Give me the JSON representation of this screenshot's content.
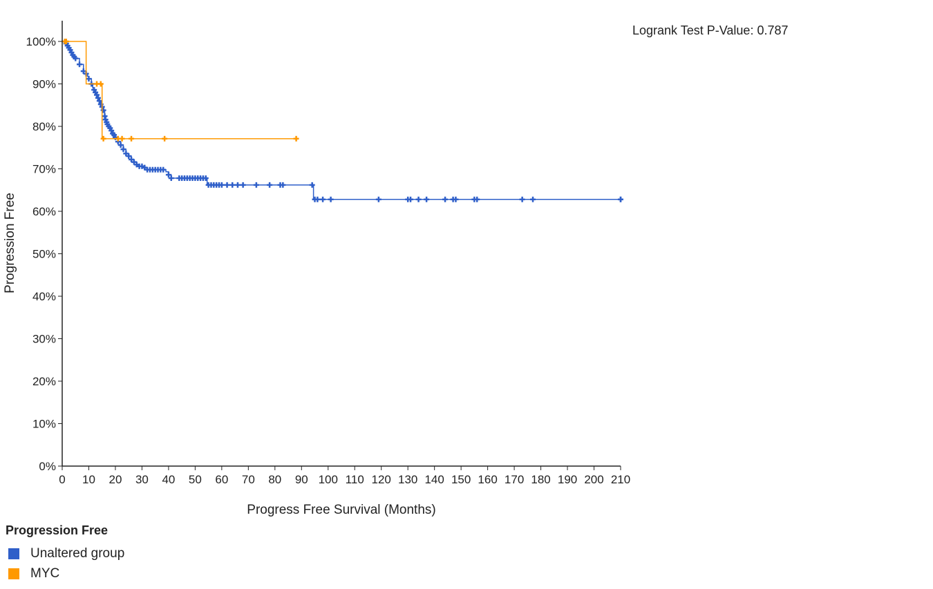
{
  "pvalue_text": "Logrank Test P-Value: 0.787",
  "legend": {
    "title": "Progression Free",
    "items": [
      {
        "label": "Unaltered group",
        "color": "#2f5fc9"
      },
      {
        "label": "MYC",
        "color": "#ff9900"
      }
    ]
  },
  "chart_data": {
    "type": "line",
    "subtype": "kaplan-meier-step",
    "xlabel": "Progress Free Survival (Months)",
    "ylabel": "Progression Free",
    "xlim": [
      0,
      210
    ],
    "ylim": [
      0,
      100
    ],
    "xticks": [
      0,
      10,
      20,
      30,
      40,
      50,
      60,
      70,
      80,
      90,
      100,
      110,
      120,
      130,
      140,
      150,
      160,
      170,
      180,
      190,
      200,
      210
    ],
    "yticks": [
      0,
      10,
      20,
      30,
      40,
      50,
      60,
      70,
      80,
      90,
      100
    ],
    "ytick_labels": [
      "0%",
      "10%",
      "20%",
      "30%",
      "40%",
      "50%",
      "60%",
      "70%",
      "80%",
      "90%",
      "100%"
    ],
    "grid": false,
    "series": [
      {
        "name": "Unaltered group",
        "color": "#2f5fc9",
        "steps": [
          [
            0,
            100
          ],
          [
            1.5,
            99.5
          ],
          [
            2,
            99
          ],
          [
            2.5,
            98.5
          ],
          [
            3,
            98
          ],
          [
            3.5,
            97.4
          ],
          [
            4,
            96.8
          ],
          [
            4.5,
            96.4
          ],
          [
            5,
            96
          ],
          [
            6.5,
            94.6
          ],
          [
            8,
            93
          ],
          [
            9,
            92.4
          ],
          [
            9.5,
            91.8
          ],
          [
            10,
            91.2
          ],
          [
            11,
            90
          ],
          [
            11.5,
            89
          ],
          [
            12,
            88.6
          ],
          [
            12.5,
            88
          ],
          [
            13,
            87.4
          ],
          [
            13.5,
            86.7
          ],
          [
            14,
            86
          ],
          [
            14.5,
            85.2
          ],
          [
            15,
            84.6
          ],
          [
            15.5,
            83.8
          ],
          [
            16,
            82.4
          ],
          [
            16.3,
            81.6
          ],
          [
            16.7,
            81
          ],
          [
            17,
            80.5
          ],
          [
            17.5,
            80
          ],
          [
            18,
            79.6
          ],
          [
            18.5,
            79
          ],
          [
            19,
            78.3
          ],
          [
            19.5,
            78
          ],
          [
            20,
            77.4
          ],
          [
            21,
            76.4
          ],
          [
            22,
            75.6
          ],
          [
            23,
            74.6
          ],
          [
            24,
            73.6
          ],
          [
            25,
            73
          ],
          [
            26,
            72.2
          ],
          [
            27,
            71.6
          ],
          [
            28,
            71
          ],
          [
            29,
            70.6
          ],
          [
            30.5,
            70.3
          ],
          [
            32,
            69.8
          ],
          [
            39,
            69.3
          ],
          [
            40,
            68.6
          ],
          [
            41,
            67.8
          ],
          [
            54.5,
            66.2
          ],
          [
            94.5,
            62.8
          ]
        ],
        "censors": [
          1,
          1.5,
          2,
          2.5,
          3,
          3.5,
          4,
          4.5,
          5,
          6.5,
          8,
          9,
          10,
          11,
          12,
          12.5,
          13,
          13.5,
          14,
          14.5,
          15,
          15.5,
          16,
          16.3,
          16.7,
          17,
          17.5,
          18,
          18.5,
          19,
          19.5,
          20,
          21,
          22,
          23,
          24,
          25,
          26,
          27,
          28,
          29,
          30,
          31,
          32,
          33,
          34,
          35,
          36,
          37,
          38,
          40,
          41,
          44,
          45,
          46,
          47,
          48,
          49,
          50,
          51,
          52,
          53,
          54,
          55,
          56,
          57,
          58,
          59,
          60,
          62,
          64,
          66,
          68,
          73,
          78,
          82,
          83,
          94,
          95,
          96,
          98,
          101,
          119,
          130,
          131,
          134,
          137,
          144,
          147,
          148,
          155,
          156,
          173,
          177,
          210,
          211
        ]
      },
      {
        "name": "MYC",
        "color": "#ff9900",
        "steps": [
          [
            0,
            100
          ],
          [
            9,
            90
          ],
          [
            15,
            77.1
          ],
          [
            88,
            77.1
          ]
        ],
        "censors": [
          1,
          1.5,
          13,
          14.5,
          15.5,
          21,
          22.5,
          26,
          38.5,
          88
        ]
      }
    ]
  }
}
